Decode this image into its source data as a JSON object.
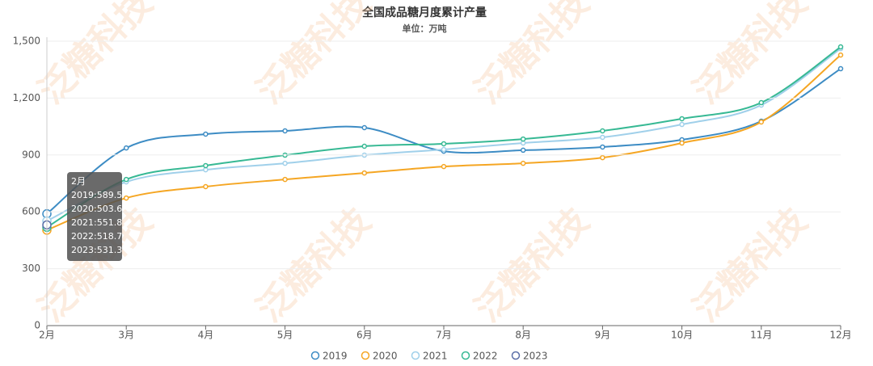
{
  "chart_data": {
    "type": "line",
    "title": "全国成品糖月度累计产量",
    "subtitle": "单位：万吨",
    "watermark": "泛糖科技",
    "categories": [
      "2月",
      "3月",
      "4月",
      "5月",
      "6月",
      "7月",
      "8月",
      "9月",
      "10月",
      "11月",
      "12月"
    ],
    "series": [
      {
        "name": "2019",
        "color": "#3d8cc4",
        "values": [
          589.5,
          937,
          1010,
          1027,
          1044,
          920,
          925,
          942,
          980,
          1078,
          1355
        ]
      },
      {
        "name": "2020",
        "color": "#f5a623",
        "values": [
          503.6,
          673,
          733,
          771,
          805,
          839,
          856,
          886,
          963,
          1074,
          1427
        ]
      },
      {
        "name": "2021",
        "color": "#a0d0ea",
        "values": [
          551.8,
          758,
          822,
          856,
          899,
          929,
          963,
          993,
          1061,
          1163,
          1461
        ]
      },
      {
        "name": "2022",
        "color": "#37b994",
        "values": [
          518.7,
          771,
          844,
          899,
          946,
          959,
          984,
          1027,
          1091,
          1176,
          1470
        ]
      },
      {
        "name": "2023",
        "color": "#5b6fa8",
        "values": [
          531.3,
          null,
          null,
          null,
          null,
          null,
          null,
          null,
          null,
          null,
          null
        ]
      }
    ],
    "ylim": [
      0,
      1500
    ],
    "yticks": [
      0,
      300,
      600,
      900,
      {
        "value": 1200,
        "label": "1,200"
      },
      {
        "value": 1500,
        "label": "1,500"
      }
    ],
    "grid": true,
    "legend": "bottom",
    "tooltip": {
      "title": "2月",
      "items": [
        "2019:589.5",
        "2020:503.6",
        "2021:551.8",
        "2022:518.7",
        "2023:531.3"
      ]
    }
  }
}
